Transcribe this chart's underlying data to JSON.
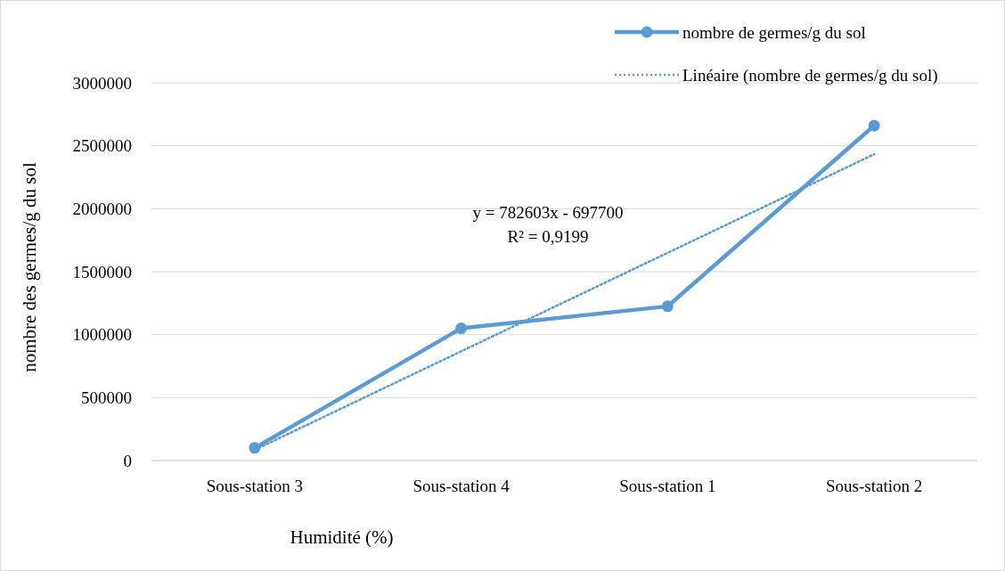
{
  "chart_data": {
    "type": "line",
    "xlabel": "Humidité (%)",
    "ylabel": "nombre des germes/g du sol",
    "categories": [
      "Sous-station 3",
      "Sous-station 4",
      "Sous-station 1",
      "Sous-station 2"
    ],
    "series": [
      {
        "name": "nombre de germes/g du sol",
        "color": "#5b9bd5",
        "values": [
          100000,
          1050000,
          1225000,
          2660000
        ],
        "marker": "circle",
        "line_style": "solid"
      },
      {
        "name": "Linéaire (nombre de germes/g du sol)",
        "color": "#5b9bd5",
        "values": [
          84903,
          867506,
          1650109,
          2432712
        ],
        "marker": "none",
        "line_style": "dotted"
      }
    ],
    "annotations": [
      "y = 782603x - 697700",
      "R² = 0,9199"
    ],
    "ylim": [
      0,
      3000000
    ],
    "yticks": [
      0,
      500000,
      1000000,
      1500000,
      2000000,
      2500000,
      3000000
    ],
    "grid": "y",
    "legend": "top right"
  }
}
